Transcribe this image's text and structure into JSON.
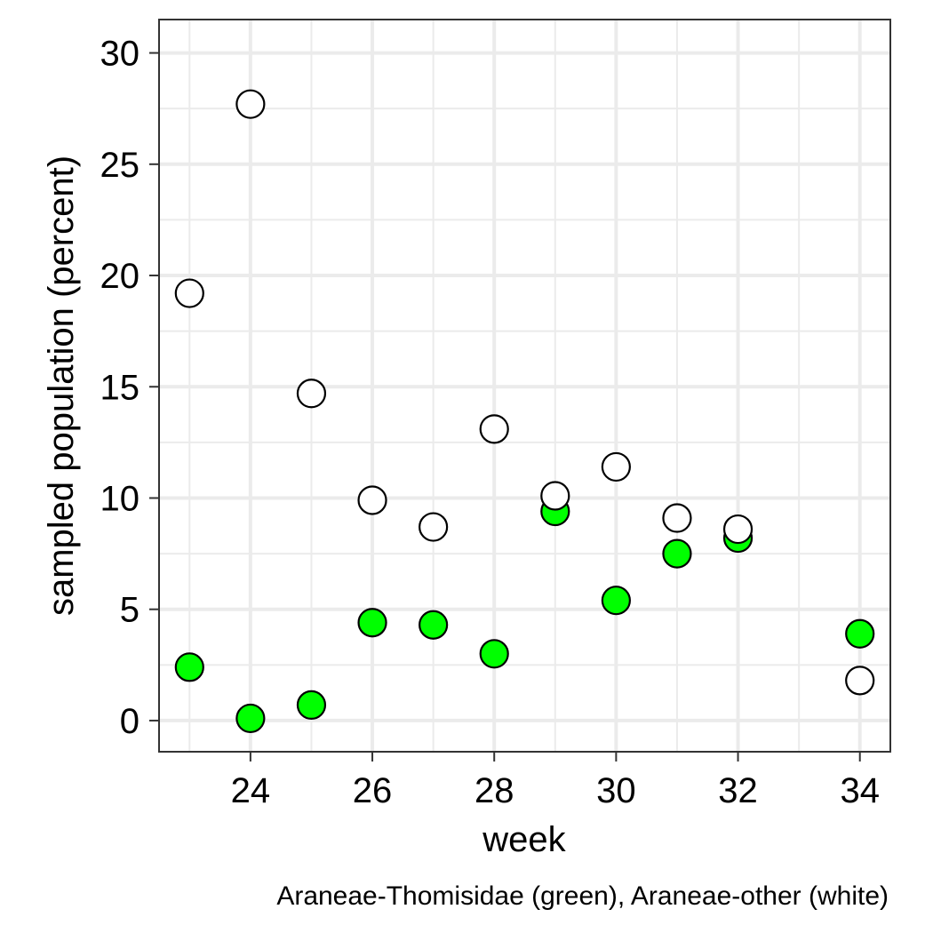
{
  "chart_data": {
    "type": "scatter",
    "xlabel": "week",
    "ylabel": "sampled population (percent)",
    "caption": "Araneae-Thomisidae (green), Araneae-other (white)",
    "xlim": [
      22.5,
      34.5
    ],
    "ylim": [
      -1.4,
      31.5
    ],
    "x_ticks": [
      24,
      26,
      28,
      30,
      32,
      34
    ],
    "y_ticks": [
      0,
      5,
      10,
      15,
      20,
      25,
      30
    ],
    "x_minor": [
      23,
      25,
      27,
      29,
      31,
      33
    ],
    "y_minor": [
      2.5,
      7.5,
      12.5,
      17.5,
      22.5,
      27.5
    ],
    "grid": true,
    "series": [
      {
        "color": "#00ff00",
        "x": [
          23,
          24,
          25,
          26,
          27,
          28,
          29,
          30,
          31,
          32,
          34
        ],
        "y": [
          2.4,
          0.1,
          0.7,
          4.4,
          4.3,
          3.0,
          9.4,
          5.4,
          7.5,
          8.2,
          3.9
        ]
      },
      {
        "color": "#ffffff",
        "x": [
          23,
          24,
          25,
          26,
          27,
          28,
          29,
          30,
          31,
          32,
          34
        ],
        "y": [
          19.2,
          27.7,
          14.7,
          9.9,
          8.7,
          13.1,
          10.1,
          11.4,
          9.1,
          8.6,
          1.8
        ]
      }
    ]
  }
}
